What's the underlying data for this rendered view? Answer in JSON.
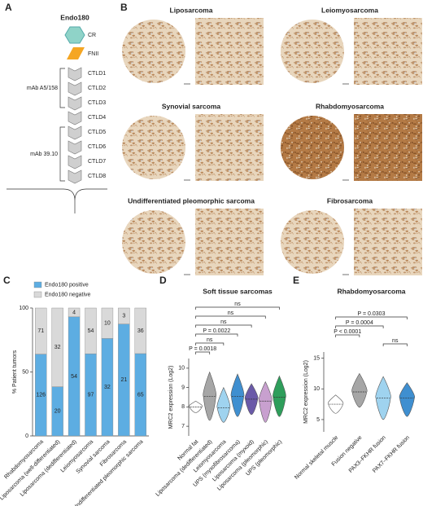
{
  "panel_a": {
    "label": "A",
    "title": "Endo180",
    "domains": [
      "CR",
      "FNII",
      "CTLD1",
      "CTLD2",
      "CTLD3",
      "CTLD4",
      "CTLD5",
      "CTLD6",
      "CTLD7",
      "CTLD8"
    ],
    "antibodies": [
      "mAb A5/158",
      "mAb 39.10"
    ]
  },
  "panel_b": {
    "label": "B",
    "tissues": [
      "Liposarcoma",
      "Leiomyosarcoma",
      "Synovial sarcoma",
      "Rhabdomyosarcoma",
      "Undifferentiated pleomorphic sarcoma",
      "Fibrosarcoma"
    ]
  },
  "chart_data": [
    {
      "label": "C",
      "type": "bar",
      "stacking": "percent",
      "ylabel": "% Patient tumors",
      "ylim": [
        0,
        100
      ],
      "yticks": [
        0,
        50,
        100
      ],
      "categories": [
        "Rhabdomyosarcoma",
        "Liposarcoma (well-differentiated)",
        "Liposarcoma (dedifferentiated)",
        "Leiomyosarcoma",
        "Synovial sarcoma",
        "Fibrosarcoma",
        "Undifferentiated pleomorphic sarcoma"
      ],
      "series": [
        {
          "name": "Endo180 positive",
          "color": "#5dade2",
          "values": [
            126,
            20,
            54,
            97,
            32,
            21,
            65
          ]
        },
        {
          "name": "Endo180 negative",
          "color": "#d9d9d9",
          "values": [
            71,
            32,
            4,
            54,
            10,
            3,
            36
          ]
        }
      ]
    },
    {
      "label": "D",
      "type": "violin",
      "title": "Soft tissue sarcomas",
      "ylabel": "MRC2 expression (Log2)",
      "ylim": [
        6.5,
        10.5
      ],
      "yticks": [
        7,
        8,
        9,
        10
      ],
      "categories": [
        "Normal fat",
        "Liposarcoma (dedifferentiated)",
        "Leiomyosarcoma",
        "UPS (myxofibrosarcoma)",
        "Liposarcoma (myxoid)",
        "Liposarcoma (pleomorphic)",
        "UPS (pleomorphic)"
      ],
      "colors": [
        "#ffffff",
        "#a6a6a6",
        "#9fd3ef",
        "#3f8fd0",
        "#6a5aa8",
        "#c8a0cf",
        "#2e9e5b"
      ],
      "median": [
        8.0,
        8.55,
        7.95,
        8.55,
        8.4,
        8.3,
        8.5
      ],
      "min": [
        7.7,
        7.3,
        7.2,
        7.5,
        7.6,
        7.2,
        7.5
      ],
      "max": [
        8.3,
        9.8,
        9.0,
        9.7,
        9.2,
        9.3,
        9.6
      ],
      "comparisons": [
        {
          "from": "Normal fat",
          "to": "Liposarcoma (dedifferentiated)",
          "label": "P = 0.0018"
        },
        {
          "from": "Normal fat",
          "to": "Leiomyosarcoma",
          "label": "ns"
        },
        {
          "from": "Normal fat",
          "to": "UPS (myxofibrosarcoma)",
          "label": "P = 0.0022"
        },
        {
          "from": "Normal fat",
          "to": "Liposarcoma (myxoid)",
          "label": "ns"
        },
        {
          "from": "Normal fat",
          "to": "Liposarcoma (pleomorphic)",
          "label": "ns"
        },
        {
          "from": "Normal fat",
          "to": "UPS (pleomorphic)",
          "label": "ns"
        }
      ]
    },
    {
      "label": "E",
      "type": "violin",
      "title": "Rhabdomyosarcoma",
      "ylabel": "MRC2 expression (Log2)",
      "ylim": [
        3,
        16
      ],
      "yticks": [
        5,
        10,
        15
      ],
      "categories": [
        "Normal skeletal muscle",
        "Fusion negative",
        "PAX3–FKHR fusion",
        "PAX7–FKHR fusion"
      ],
      "colors": [
        "#ffffff",
        "#a6a6a6",
        "#9fd3ef",
        "#3f8fd0"
      ],
      "median": [
        7.5,
        9.5,
        8.5,
        8.5
      ],
      "min": [
        6,
        7,
        5,
        5.5
      ],
      "max": [
        9,
        12.5,
        12,
        11
      ],
      "comparisons": [
        {
          "from": "PAX3–FKHR fusion",
          "to": "PAX7–FKHR fusion",
          "label": "ns"
        },
        {
          "from": "Normal skeletal muscle",
          "to": "Fusion negative",
          "label": "P < 0.0001"
        },
        {
          "from": "Normal skeletal muscle",
          "to": "PAX3–FKHR fusion",
          "label": "P = 0.0004"
        },
        {
          "from": "Normal skeletal muscle",
          "to": "PAX7–FKHR fusion",
          "label": "P = 0.0303"
        }
      ]
    }
  ]
}
